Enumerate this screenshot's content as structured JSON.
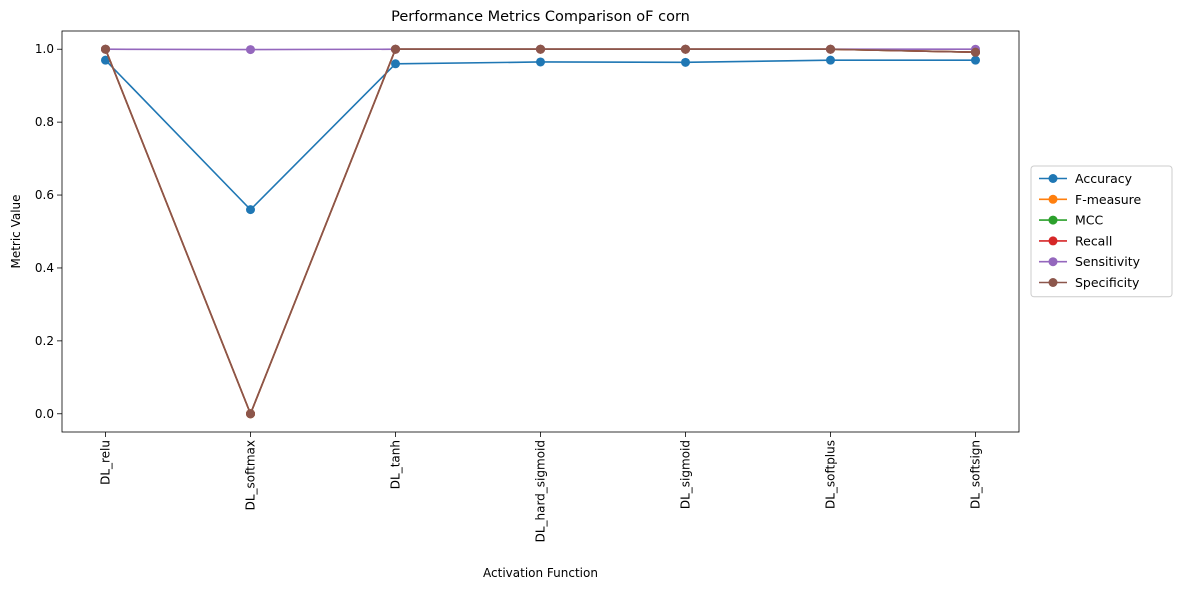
{
  "chart_data": {
    "type": "line",
    "title": "Performance Metrics Comparison oF corn",
    "xlabel": "Activation Function",
    "ylabel": "Metric Value",
    "categories": [
      "DL_relu",
      "DL_softmax",
      "DL_tanh",
      "DL_hard_sigmoid",
      "DL_sigmoid",
      "DL_softplus",
      "DL_softsign"
    ],
    "ylim": [
      -0.05,
      1.05
    ],
    "yticks": [
      0.0,
      0.2,
      0.4,
      0.6,
      0.8,
      1.0
    ],
    "ytick_labels": [
      "0.0",
      "0.2",
      "0.4",
      "0.6",
      "0.8",
      "1.0"
    ],
    "grid": false,
    "legend_position": "outside-right",
    "series": [
      {
        "name": "Accuracy",
        "color": "#1f77b4",
        "values": [
          0.97,
          0.56,
          0.96,
          0.965,
          0.964,
          0.97,
          0.97
        ]
      },
      {
        "name": "F-measure",
        "color": "#ff7f0e",
        "values": [
          1.0,
          0.0,
          1.0,
          1.0,
          1.0,
          1.0,
          0.992
        ]
      },
      {
        "name": "MCC",
        "color": "#2ca02c",
        "values": [
          1.0,
          0.0,
          1.0,
          1.0,
          1.0,
          1.0,
          0.992
        ]
      },
      {
        "name": "Recall",
        "color": "#d62728",
        "values": [
          1.0,
          0.0,
          1.0,
          1.0,
          1.0,
          1.0,
          0.992
        ]
      },
      {
        "name": "Sensitivity",
        "color": "#9467bd",
        "values": [
          1.0,
          0.999,
          1.0,
          1.0,
          1.0,
          1.0,
          1.0
        ]
      },
      {
        "name": "Specificity",
        "color": "#8c564b",
        "values": [
          1.0,
          0.0,
          1.0,
          1.0,
          1.0,
          1.0,
          0.992
        ]
      }
    ]
  }
}
